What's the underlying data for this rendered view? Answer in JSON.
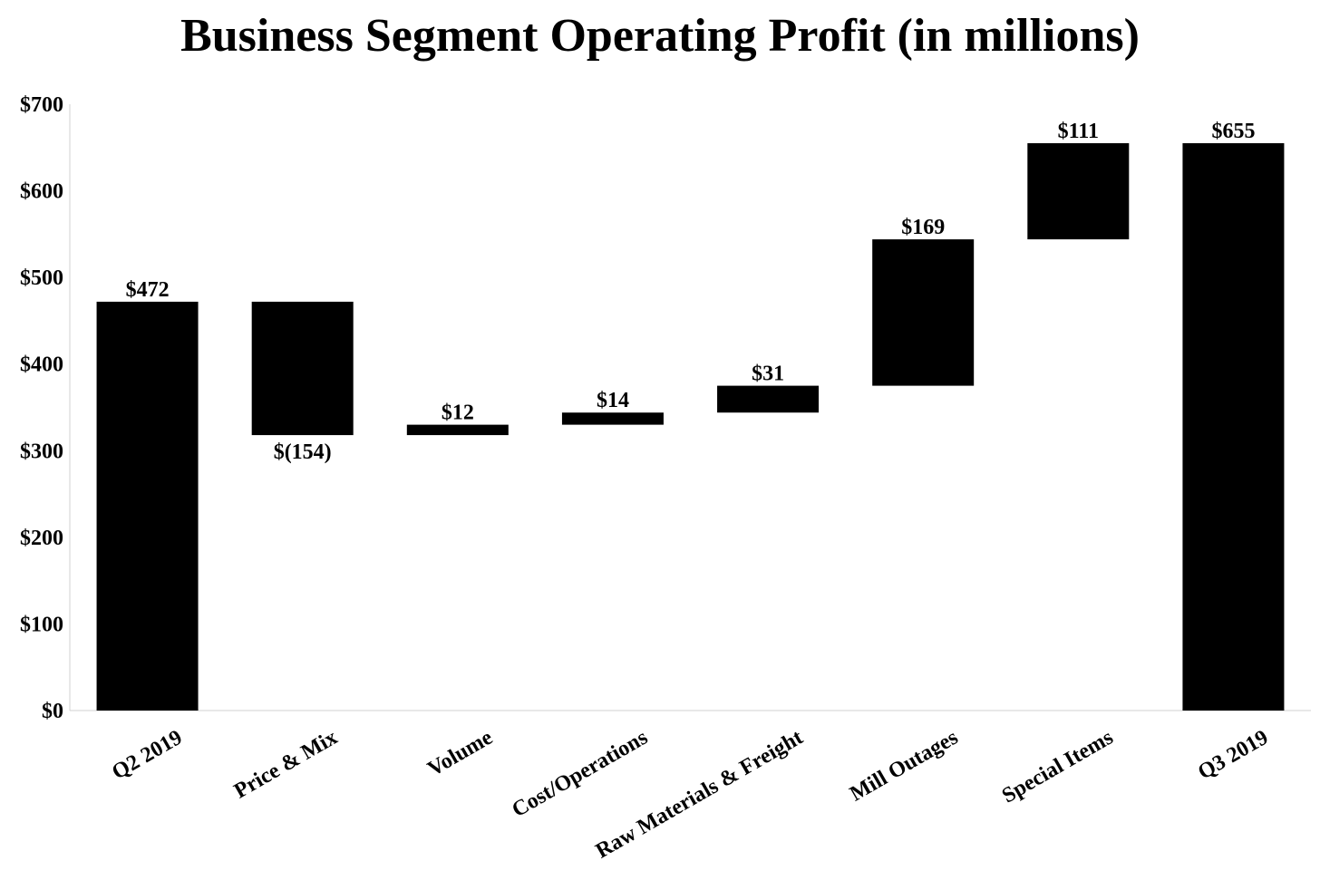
{
  "chart_data": {
    "type": "waterfall",
    "title": "Business Segment Operating Profit (in millions)",
    "xlabel": "",
    "ylabel": "",
    "ylim": [
      0,
      700
    ],
    "yticks": [
      0,
      100,
      200,
      300,
      400,
      500,
      600,
      700
    ],
    "ytick_labels": [
      "$0",
      "$100",
      "$200",
      "$300",
      "$400",
      "$500",
      "$600",
      "$700"
    ],
    "grid": false,
    "bar_color": "#000000",
    "categories": [
      "Q2 2019",
      "Price & Mix",
      "Volume",
      "Cost/Operations",
      "Raw Materials & Freight",
      "Mill Outages",
      "Special Items",
      "Q3 2019"
    ],
    "kinds": [
      "total",
      "delta",
      "delta",
      "delta",
      "delta",
      "delta",
      "delta",
      "total"
    ],
    "values": [
      472,
      -154,
      12,
      14,
      31,
      169,
      111,
      655
    ],
    "data_labels": [
      "$472",
      "$(154)",
      "$12",
      "$14",
      "$31",
      "$169",
      "$111",
      "$655"
    ]
  }
}
